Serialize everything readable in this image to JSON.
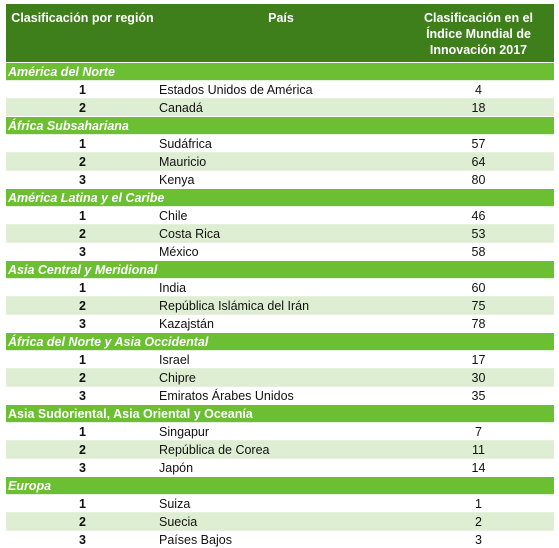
{
  "header": {
    "col1": "Clasificación por región",
    "col2": "País",
    "col3": "Clasificación en el Índice Mundial de Innovación 2017"
  },
  "regions": [
    {
      "name": "América del Norte",
      "italic": true,
      "rows": [
        {
          "rank": "1",
          "country": "Estados Unidos de América",
          "score": "4"
        },
        {
          "rank": "2",
          "country": "Canadá",
          "score": "18"
        }
      ]
    },
    {
      "name": "África Subsahariana",
      "italic": true,
      "rows": [
        {
          "rank": "1",
          "country": "Sudáfrica",
          "score": "57"
        },
        {
          "rank": "2",
          "country": "Mauricio",
          "score": "64"
        },
        {
          "rank": "3",
          "country": "Kenya",
          "score": "80"
        }
      ]
    },
    {
      "name": "América Latina y el Caribe",
      "italic": true,
      "rows": [
        {
          "rank": "1",
          "country": "Chile",
          "score": "46"
        },
        {
          "rank": "2",
          "country": "Costa Rica",
          "score": "53"
        },
        {
          "rank": "3",
          "country": "México",
          "score": "58"
        }
      ]
    },
    {
      "name": "Asia Central y Meridional",
      "italic": true,
      "rows": [
        {
          "rank": "1",
          "country": "India",
          "score": "60"
        },
        {
          "rank": "2",
          "country": "República Islámica del Irán",
          "score": "75"
        },
        {
          "rank": "3",
          "country": "Kazajstán",
          "score": "78"
        }
      ]
    },
    {
      "name": "África del Norte y Asia Occidental",
      "italic": true,
      "rows": [
        {
          "rank": "1",
          "country": "Israel",
          "score": "17"
        },
        {
          "rank": "2",
          "country": "Chipre",
          "score": "30"
        },
        {
          "rank": "3",
          "country": "Emiratos Árabes Unidos",
          "score": "35"
        }
      ]
    },
    {
      "name": "Asia Sudoriental, Asia Oriental y Oceanía",
      "italic": false,
      "rows": [
        {
          "rank": "1",
          "country": "Singapur",
          "score": "7"
        },
        {
          "rank": "2",
          "country": "República de Corea",
          "score": "11"
        },
        {
          "rank": "3",
          "country": "Japón",
          "score": "14"
        }
      ]
    },
    {
      "name": "Europa",
      "italic": true,
      "rows": [
        {
          "rank": "1",
          "country": "Suiza",
          "score": "1"
        },
        {
          "rank": "2",
          "country": "Suecia",
          "score": "2"
        },
        {
          "rank": "3",
          "country": "Países Bajos",
          "score": "3"
        }
      ]
    }
  ],
  "colors": {
    "header_bg": "#3e7f1b",
    "region_bg": "#6cbf33",
    "shade_bg": "#deeed3"
  }
}
